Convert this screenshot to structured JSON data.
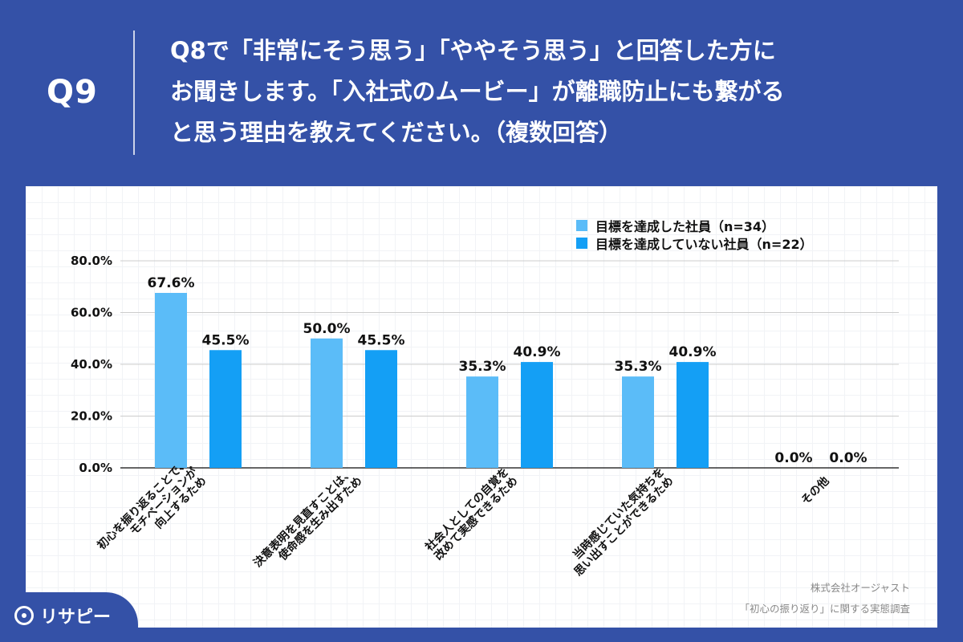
{
  "header": {
    "q_number": "Q9",
    "question_lines": [
      "Q8で「非常にそう思う」「ややそう思う」と回答した方に",
      "お聞きします。「入社式のムービー」が離職防止にも繋がる",
      "と思う理由を教えてください。（複数回答）"
    ]
  },
  "colors": {
    "background": "#3451a7",
    "series_1": "#5bbcf8",
    "series_2": "#149ff5",
    "axis": "#333333",
    "gridline": "#cccccc"
  },
  "chart_data": {
    "type": "bar",
    "categories": [
      "初心を振り返ることで、モチベーションが向上するため",
      "決意表明を見直すことは、使命感を生み出すため",
      "社会人としての自覚を改めて実感できるため",
      "当時感じていた気持ちを思い出すことができるため",
      "その他"
    ],
    "category_lines": [
      [
        "初心を振り返ることで、",
        "モチベーションが",
        "向上するため"
      ],
      [
        "決意表明を見直すことは、",
        "使命感を生み出すため"
      ],
      [
        "社会人としての自覚を",
        "改めて実感できるため"
      ],
      [
        "当時感じていた気持ちを",
        "思い出すことができるため"
      ],
      [
        "その他"
      ]
    ],
    "series": [
      {
        "name": "目標を達成した社員（n=34）",
        "values": [
          67.6,
          50.0,
          35.3,
          35.3,
          0.0
        ]
      },
      {
        "name": "目標を達成していない社員（n=22）",
        "values": [
          45.5,
          45.5,
          40.9,
          40.9,
          0.0
        ]
      }
    ],
    "value_labels": [
      [
        "67.6%",
        "50.0%",
        "35.3%",
        "35.3%",
        "0.0%"
      ],
      [
        "45.5%",
        "45.5%",
        "40.9%",
        "40.9%",
        "0.0%"
      ]
    ],
    "y_ticks": [
      0,
      20,
      40,
      60,
      80
    ],
    "y_tick_labels": [
      "0.0%",
      "20.0%",
      "40.0%",
      "60.0%",
      "80.0%"
    ],
    "ylim": [
      0,
      80
    ],
    "grid": true,
    "legend_position": "top-right"
  },
  "source": {
    "company": "株式会社オージャスト",
    "survey": "「初心の振り返り」に関する実態調査"
  },
  "logo": {
    "text": "リサピー"
  }
}
